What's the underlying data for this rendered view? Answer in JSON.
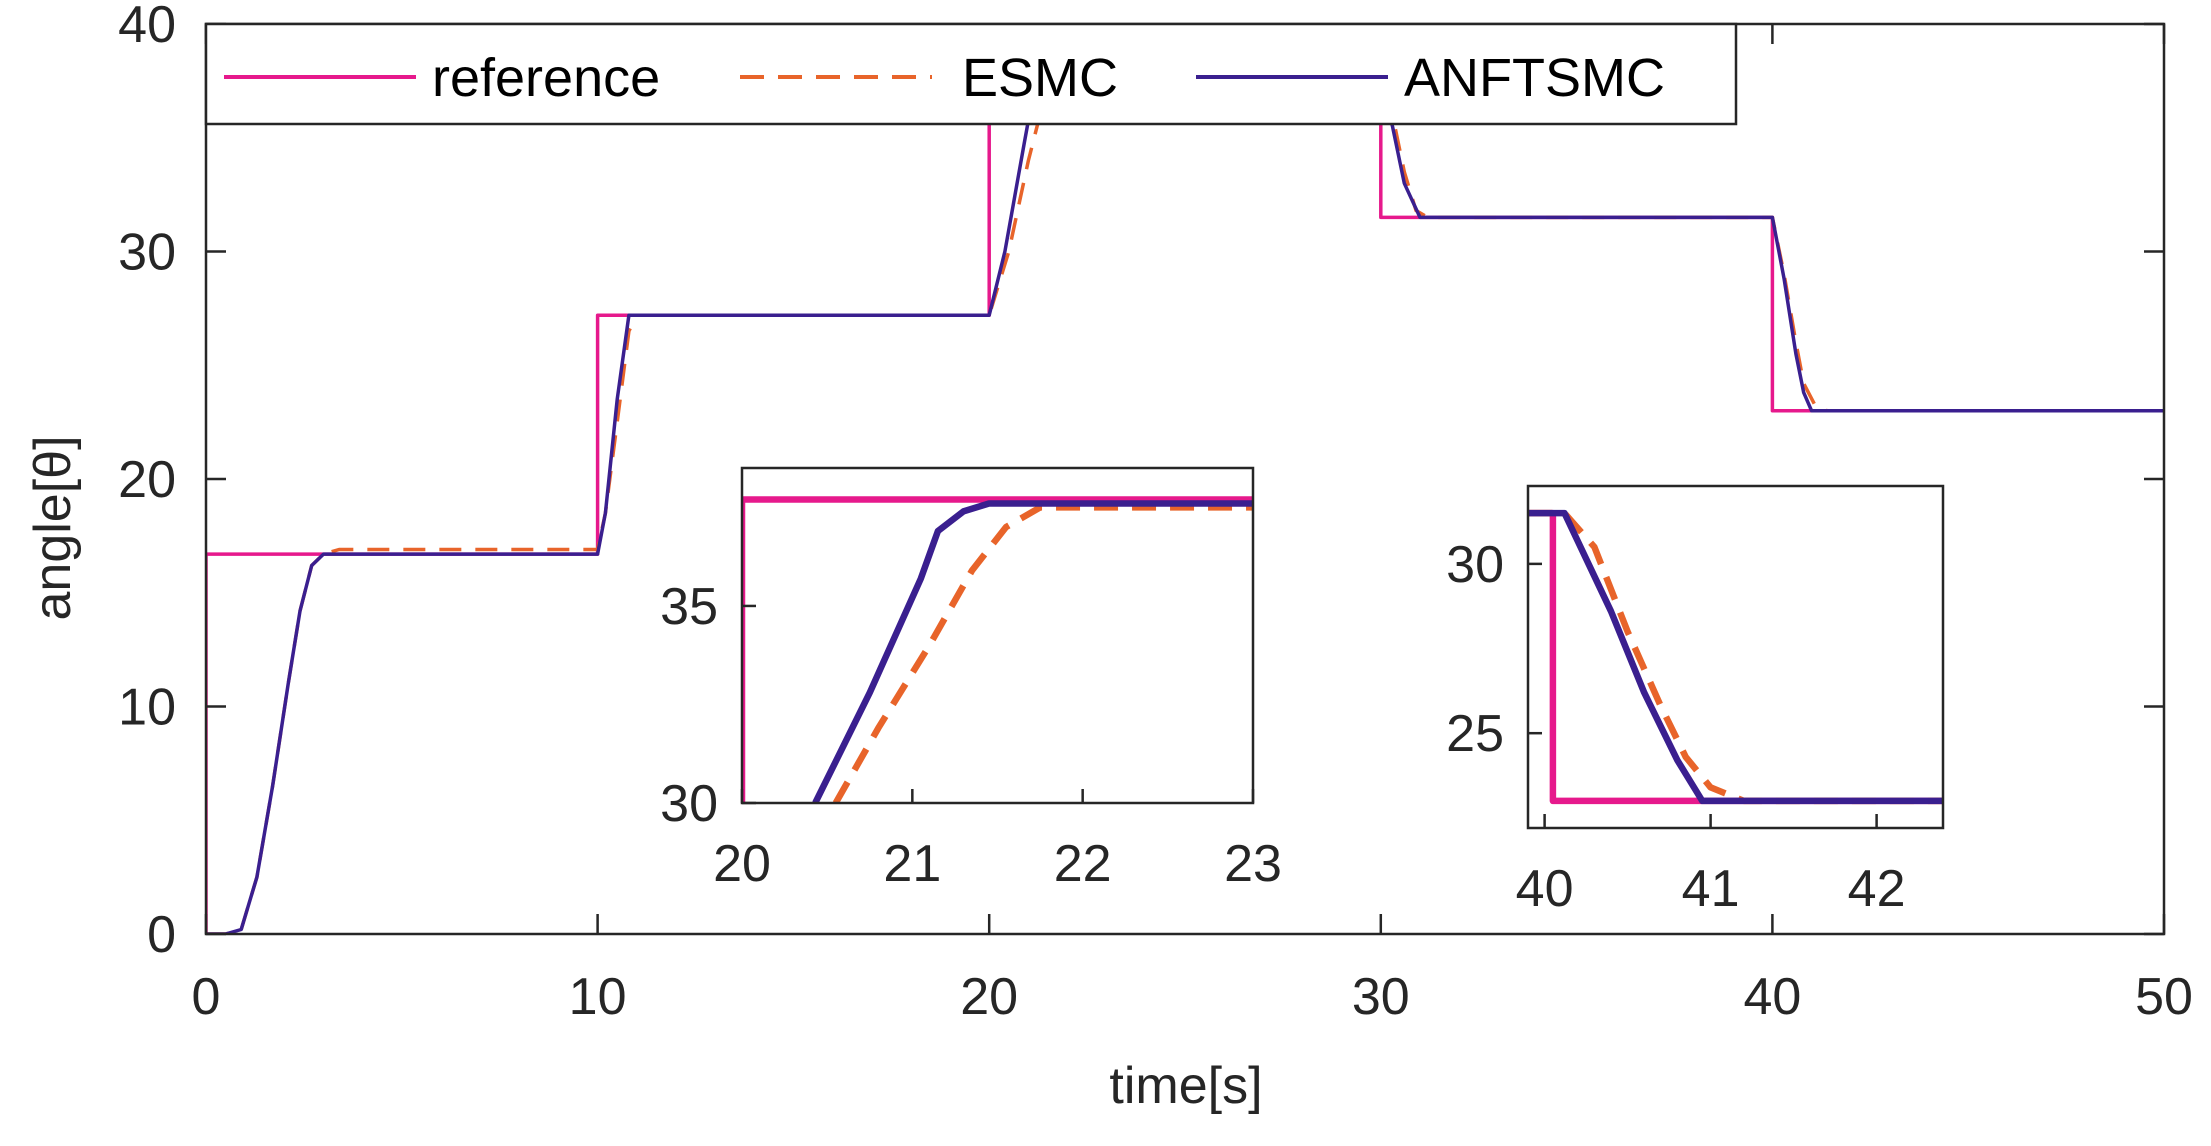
{
  "chart_data": [
    {
      "type": "line",
      "title": "",
      "xlabel": "time[s]",
      "ylabel": "angle[θ]",
      "xlim": [
        0,
        50
      ],
      "ylim": [
        0,
        40
      ],
      "xticks": [
        "0",
        "10",
        "20",
        "30",
        "40",
        "50"
      ],
      "yticks": [
        "0",
        "10",
        "20",
        "30",
        "40"
      ],
      "grid": false,
      "legend": {
        "placement": "top-left",
        "orientation": "horizontal"
      },
      "series": [
        {
          "name": "reference",
          "color": "#e6198c",
          "style": "solid",
          "x": [
            0,
            0,
            10,
            10,
            20,
            20,
            30,
            30,
            40,
            40,
            50
          ],
          "y": [
            0,
            16.7,
            16.7,
            27.2,
            27.2,
            37.7,
            37.7,
            31.5,
            31.5,
            23.0,
            23.0
          ]
        },
        {
          "name": "ESMC",
          "color": "#e8642a",
          "style": "dashed",
          "x": [
            0,
            0.5,
            0.9,
            1.3,
            1.7,
            2.1,
            2.4,
            2.7,
            3.0,
            3.4,
            10.0,
            10.2,
            10.5,
            10.8,
            11.0,
            20.0,
            20.5,
            21.0,
            21.4,
            21.8,
            30.0,
            30.3,
            30.6,
            30.9,
            31.2,
            40.0,
            40.3,
            40.6,
            40.8,
            41.1,
            41.4,
            50
          ],
          "y": [
            0,
            0,
            0.2,
            2.5,
            6.5,
            11.0,
            14.2,
            16.2,
            16.7,
            16.9,
            16.9,
            18.5,
            22.5,
            26.5,
            27.2,
            27.2,
            30.0,
            34.0,
            36.7,
            37.5,
            37.5,
            36.0,
            33.5,
            31.8,
            31.5,
            31.5,
            29.0,
            26.0,
            24.2,
            23.2,
            23.0,
            23.0
          ]
        },
        {
          "name": "ANFTSMC",
          "color": "#3a1f8f",
          "style": "solid",
          "x": [
            0,
            0.5,
            0.9,
            1.3,
            1.7,
            2.1,
            2.4,
            2.7,
            3.0,
            10.0,
            10.2,
            10.5,
            10.8,
            20.0,
            20.4,
            20.9,
            21.1,
            21.3,
            21.6,
            30.0,
            30.3,
            30.6,
            31.0,
            40.0,
            40.3,
            40.6,
            40.8,
            41.0,
            50
          ],
          "y": [
            0,
            0,
            0.2,
            2.5,
            6.5,
            11.0,
            14.2,
            16.2,
            16.7,
            16.7,
            18.5,
            23.5,
            27.2,
            27.2,
            30.0,
            34.8,
            36.7,
            37.3,
            37.5,
            37.5,
            35.5,
            33.0,
            31.5,
            31.5,
            28.8,
            25.5,
            23.8,
            23.0,
            23.0
          ]
        }
      ]
    },
    {
      "type": "line",
      "title": "",
      "xlim": [
        20,
        23
      ],
      "ylim": [
        30,
        38.5
      ],
      "xticks": [
        "20",
        "21",
        "22",
        "23"
      ],
      "yticks": [
        "30",
        "35"
      ],
      "grid": false,
      "series": [
        {
          "name": "reference",
          "color": "#e6198c",
          "style": "solid",
          "x": [
            20,
            20,
            23
          ],
          "y": [
            30,
            37.7,
            37.7
          ]
        },
        {
          "name": "ESMC",
          "color": "#e8642a",
          "style": "dashed",
          "x": [
            20.55,
            20.8,
            21.1,
            21.35,
            21.55,
            21.75,
            23
          ],
          "y": [
            30,
            31.9,
            34.0,
            35.9,
            37.0,
            37.5,
            37.5
          ]
        },
        {
          "name": "ANFTSMC",
          "color": "#3a1f8f",
          "style": "solid",
          "x": [
            20.43,
            20.75,
            21.05,
            21.15,
            21.3,
            21.45,
            23
          ],
          "y": [
            30,
            32.8,
            35.7,
            36.9,
            37.4,
            37.6,
            37.6
          ]
        }
      ]
    },
    {
      "type": "line",
      "title": "",
      "xlim": [
        39.9,
        42.4
      ],
      "ylim": [
        22.2,
        32.3
      ],
      "xticks": [
        "40",
        "41",
        "42"
      ],
      "yticks": [
        "25",
        "30"
      ],
      "grid": false,
      "series": [
        {
          "name": "reference",
          "color": "#e6198c",
          "style": "solid",
          "x": [
            39.9,
            40.05,
            40.05,
            42.4
          ],
          "y": [
            31.5,
            31.5,
            23.0,
            23.0
          ]
        },
        {
          "name": "ESMC",
          "color": "#e8642a",
          "style": "dashed",
          "x": [
            39.9,
            40.12,
            40.3,
            40.5,
            40.7,
            40.85,
            41.0,
            41.2,
            42.4
          ],
          "y": [
            31.5,
            31.5,
            30.5,
            28.0,
            25.8,
            24.3,
            23.4,
            23.0,
            23.0
          ]
        },
        {
          "name": "ANFTSMC",
          "color": "#3a1f8f",
          "style": "solid",
          "x": [
            39.9,
            40.12,
            40.4,
            40.6,
            40.8,
            40.95,
            42.4
          ],
          "y": [
            31.5,
            31.5,
            28.6,
            26.2,
            24.2,
            23.0,
            23.0
          ]
        }
      ]
    }
  ]
}
